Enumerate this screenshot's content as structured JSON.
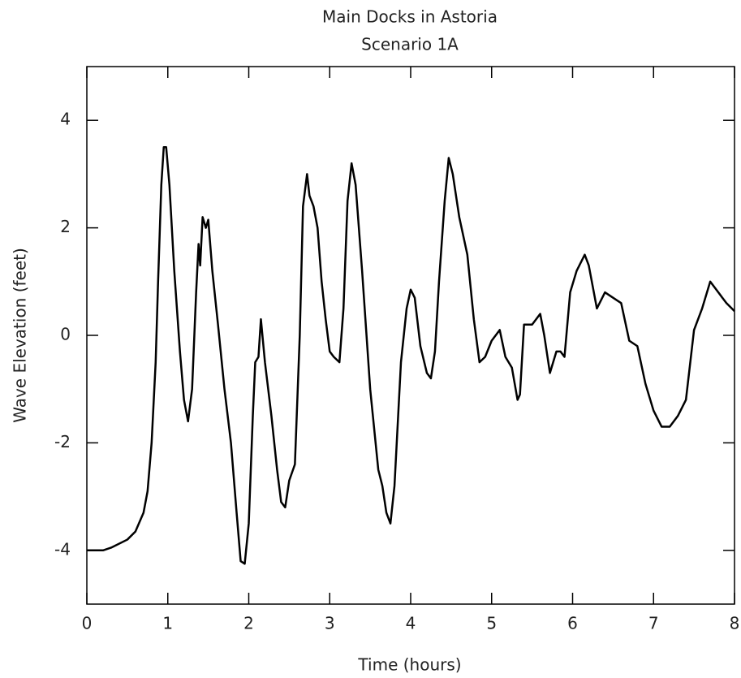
{
  "chart_data": {
    "type": "line",
    "title": "Main Docks in Astoria",
    "subtitle": "Scenario 1A",
    "xlabel": "Time (hours)",
    "ylabel": "Wave Elevation (feet)",
    "xlim": [
      0,
      8
    ],
    "ylim": [
      -5,
      5
    ],
    "xticks": [
      0,
      1,
      2,
      3,
      4,
      5,
      6,
      7,
      8
    ],
    "yticks": [
      -4,
      -2,
      0,
      2,
      4
    ],
    "grid": false,
    "series": [
      {
        "name": "Wave Elevation",
        "color": "#000000",
        "x": [
          0,
          0.2,
          0.3,
          0.5,
          0.6,
          0.7,
          0.75,
          0.8,
          0.85,
          0.88,
          0.92,
          0.95,
          0.98,
          1.02,
          1.08,
          1.15,
          1.2,
          1.25,
          1.3,
          1.35,
          1.38,
          1.4,
          1.43,
          1.47,
          1.5,
          1.55,
          1.62,
          1.7,
          1.78,
          1.85,
          1.9,
          1.95,
          2.0,
          2.05,
          2.08,
          2.12,
          2.15,
          2.2,
          2.28,
          2.35,
          2.4,
          2.45,
          2.5,
          2.57,
          2.63,
          2.67,
          2.72,
          2.75,
          2.8,
          2.85,
          2.9,
          2.95,
          3.0,
          3.05,
          3.12,
          3.17,
          3.22,
          3.27,
          3.32,
          3.4,
          3.5,
          3.6,
          3.65,
          3.7,
          3.75,
          3.8,
          3.88,
          3.95,
          4.0,
          4.05,
          4.12,
          4.2,
          4.25,
          4.3,
          4.35,
          4.42,
          4.47,
          4.52,
          4.6,
          4.7,
          4.78,
          4.85,
          4.92,
          5.0,
          5.1,
          5.17,
          5.25,
          5.32,
          5.35,
          5.4,
          5.5,
          5.6,
          5.65,
          5.72,
          5.8,
          5.85,
          5.9,
          5.97,
          6.05,
          6.15,
          6.2,
          6.3,
          6.4,
          6.5,
          6.6,
          6.7,
          6.8,
          6.9,
          7.0,
          7.1,
          7.2,
          7.3,
          7.4,
          7.5,
          7.6,
          7.7,
          7.8,
          7.9,
          8.0
        ],
        "values": [
          -4.0,
          -4.0,
          -3.95,
          -3.8,
          -3.65,
          -3.3,
          -2.9,
          -2.0,
          -0.5,
          1.0,
          2.8,
          3.5,
          3.5,
          2.8,
          1.2,
          -0.3,
          -1.2,
          -1.6,
          -1.0,
          0.8,
          1.7,
          1.3,
          2.2,
          2.0,
          2.15,
          1.2,
          0.2,
          -1.0,
          -2.0,
          -3.3,
          -4.2,
          -4.25,
          -3.5,
          -1.5,
          -0.5,
          -0.4,
          0.3,
          -0.5,
          -1.5,
          -2.5,
          -3.1,
          -3.2,
          -2.7,
          -2.4,
          0,
          2.4,
          3.0,
          2.6,
          2.4,
          2.0,
          1.0,
          0.3,
          -0.3,
          -0.4,
          -0.5,
          0.5,
          2.5,
          3.2,
          2.8,
          1.2,
          -1.0,
          -2.5,
          -2.8,
          -3.3,
          -3.5,
          -2.8,
          -0.5,
          0.5,
          0.85,
          0.7,
          -0.2,
          -0.7,
          -0.8,
          -0.3,
          1.0,
          2.5,
          3.3,
          3.0,
          2.2,
          1.5,
          0.3,
          -0.5,
          -0.4,
          -0.1,
          0.1,
          -0.4,
          -0.6,
          -1.2,
          -1.1,
          0.2,
          0.2,
          0.4,
          0,
          -0.7,
          -0.3,
          -0.3,
          -0.4,
          0.8,
          1.2,
          1.5,
          1.3,
          0.5,
          0.8,
          0.7,
          0.6,
          -0.1,
          -0.2,
          -0.9,
          -1.4,
          -1.7,
          -1.7,
          -1.5,
          -1.2,
          0.1,
          0.5,
          1.0,
          0.8,
          0.6,
          0.45
        ]
      }
    ]
  }
}
